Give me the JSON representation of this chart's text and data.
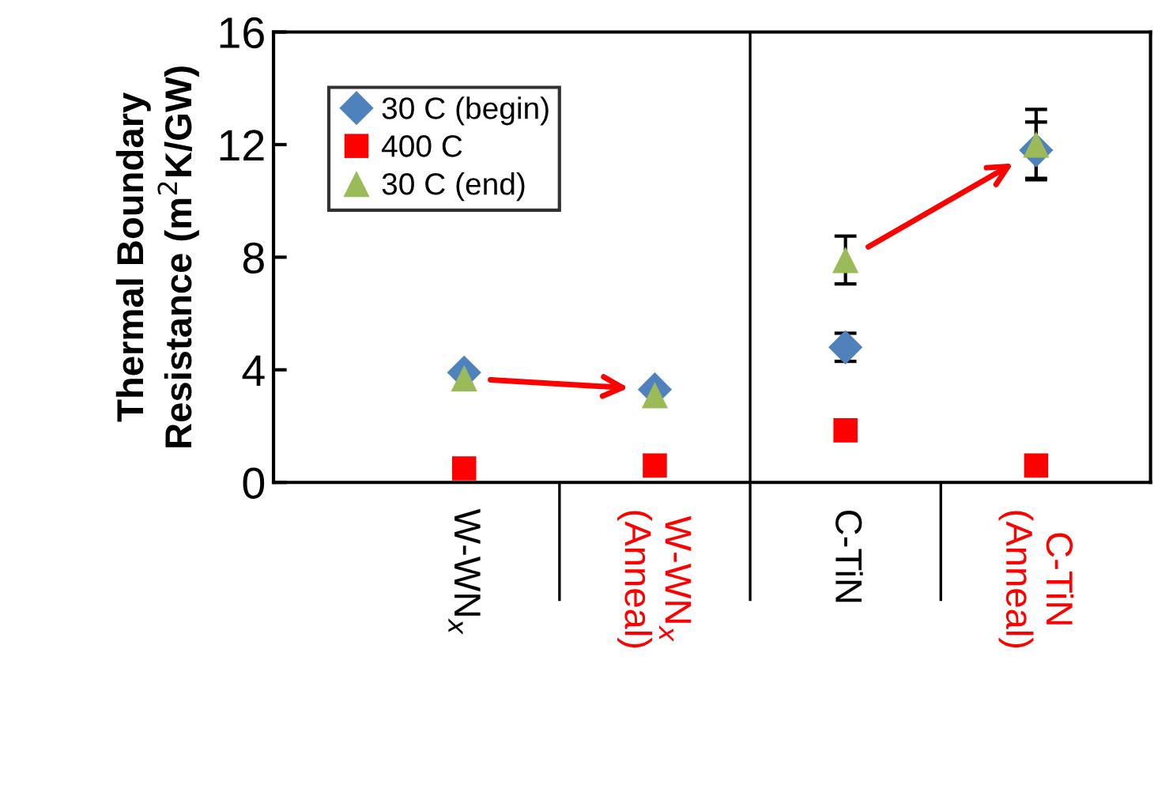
{
  "chart_data": {
    "type": "scatter",
    "ylabel": "Thermal Boundary\nResistance (m$^{2}$K/GW)",
    "categories": [
      "W-WN$_{x}$",
      "W-WN$_{x}$\n(Anneal)",
      "C-TiN",
      "C-TiN\n(Anneal)"
    ],
    "series": [
      {
        "name": "30 C (begin)",
        "color": "#4f81bd",
        "marker": "diamond",
        "values": [
          3.9,
          3.3,
          4.8,
          11.8
        ],
        "errors": [
          null,
          null,
          0.5,
          1.0
        ]
      },
      {
        "name": "400 C",
        "color": "#ff0000",
        "marker": "square",
        "values": [
          0.5,
          0.6,
          1.85,
          0.6
        ]
      },
      {
        "name": "30 C (end)",
        "color": "#9bbb59",
        "marker": "triangle",
        "values": [
          3.7,
          3.1,
          7.9,
          12.0
        ],
        "errors": [
          null,
          null,
          0.85,
          1.25
        ]
      }
    ],
    "ylim": [
      0,
      16
    ],
    "yticks": [
      0,
      4,
      8,
      12,
      16
    ],
    "grid": false,
    "legend": "top left"
  }
}
